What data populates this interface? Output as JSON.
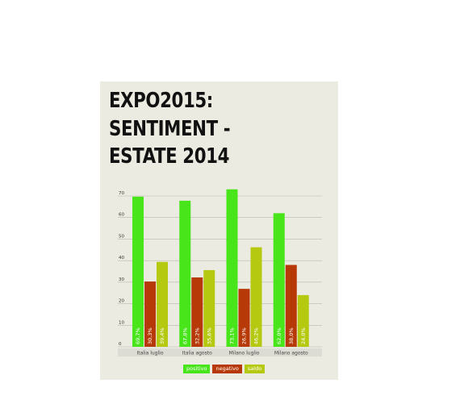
{
  "title": "EXPO2015: SENTIMENT - ESTATE 2014",
  "colors": {
    "positivo": "#47e51a",
    "negativo": "#b73907",
    "saldo": "#b4c910",
    "grid": "#b8b8b0",
    "background": "#ecebe1"
  },
  "chart_data": {
    "type": "bar",
    "categories": [
      "Italia luglio",
      "Italia agosto",
      "Milano luglio",
      "Milano agosto"
    ],
    "series": [
      {
        "name": "positivo",
        "values": [
          69.7,
          67.8,
          73.1,
          62.0
        ],
        "labels": [
          "69,7%",
          "67,8%",
          "73,1%",
          "62,0%"
        ]
      },
      {
        "name": "negativo",
        "values": [
          30.3,
          32.2,
          26.9,
          38.0
        ],
        "labels": [
          "30,3%",
          "32,2%",
          "26,9%",
          "38,0%"
        ]
      },
      {
        "name": "saldo",
        "values": [
          39.4,
          35.6,
          46.2,
          24.0
        ],
        "labels": [
          "39,4%",
          "35,6%",
          "46,2%",
          "24,0%"
        ]
      }
    ],
    "yticks": [
      "0",
      "10",
      "20",
      "30",
      "40",
      "50",
      "60",
      "70"
    ],
    "ylim": [
      0,
      70
    ],
    "grid": true,
    "legend_position": "bottom"
  }
}
